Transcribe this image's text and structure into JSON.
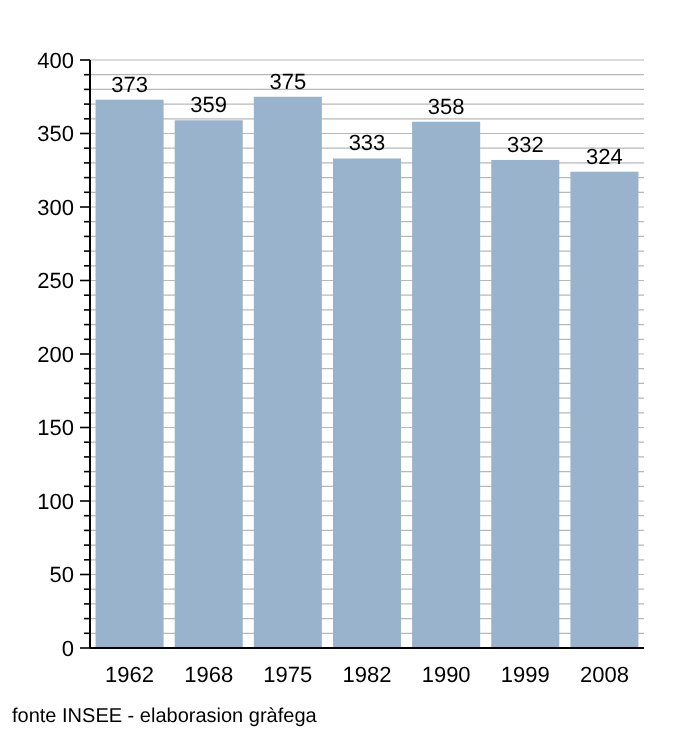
{
  "chart_data": {
    "type": "bar",
    "categories": [
      "1962",
      "1968",
      "1975",
      "1982",
      "1990",
      "1999",
      "2008"
    ],
    "values": [
      373,
      359,
      375,
      333,
      358,
      332,
      324
    ],
    "color": "#99b3cc",
    "data_labels": true,
    "ylim": [
      0,
      400
    ],
    "yticks": [
      0,
      {
        "value": 10,
        "label": null
      },
      {
        "value": 20,
        "label": null
      },
      {
        "value": 30,
        "label": null
      },
      {
        "value": 40,
        "label": null
      },
      50,
      {
        "value": 60,
        "label": null
      },
      {
        "value": 70,
        "label": null
      },
      {
        "value": 80,
        "label": null
      },
      {
        "value": 90,
        "label": null
      },
      100,
      {
        "value": 110,
        "label": null
      },
      {
        "value": 120,
        "label": null
      },
      {
        "value": 130,
        "label": null
      },
      {
        "value": 140,
        "label": null
      },
      150,
      {
        "value": 160,
        "label": null
      },
      {
        "value": 170,
        "label": null
      },
      {
        "value": 180,
        "label": null
      },
      {
        "value": 190,
        "label": null
      },
      200,
      {
        "value": 210,
        "label": null
      },
      {
        "value": 220,
        "label": null
      },
      {
        "value": 230,
        "label": null
      },
      {
        "value": 240,
        "label": null
      },
      250,
      {
        "value": 260,
        "label": null
      },
      {
        "value": 270,
        "label": null
      },
      {
        "value": 280,
        "label": null
      },
      {
        "value": 290,
        "label": null
      },
      300,
      {
        "value": 310,
        "label": null
      },
      {
        "value": 320,
        "label": null
      },
      {
        "value": 330,
        "label": null
      },
      {
        "value": 340,
        "label": null
      },
      350,
      {
        "value": 360,
        "label": null
      },
      {
        "value": 370,
        "label": null
      },
      {
        "value": 380,
        "label": null
      },
      {
        "value": 390,
        "label": null
      },
      400
    ],
    "grid": true,
    "annotations": [
      "fonte INSEE - elaborasion gràfega"
    ]
  }
}
